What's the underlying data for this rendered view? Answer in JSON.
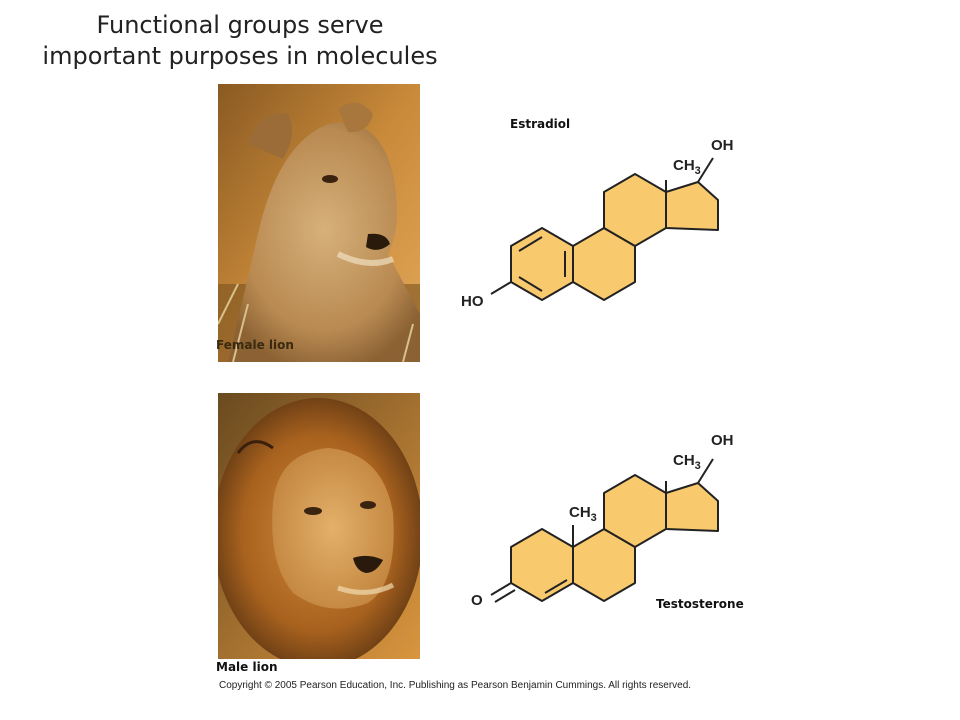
{
  "title": "Functional groups serve important purposes in molecules",
  "photos": {
    "female": {
      "label": "Female lion"
    },
    "male": {
      "label": "Male lion"
    }
  },
  "molecules": {
    "estradiol": {
      "name": "Estradiol",
      "groups": {
        "oh_top": "OH",
        "ho_left": "HO",
        "methyl": "CH",
        "methyl_sub": "3"
      }
    },
    "testosterone": {
      "name": "Testosterone",
      "groups": {
        "oh_top": "OH",
        "carbonyl": "O",
        "methyl_top": "CH",
        "methyl_top_sub": "3",
        "methyl_mid": "CH",
        "methyl_mid_sub": "3"
      }
    }
  },
  "ring_fill_color": "#f9c96e",
  "copyright": "Copyright © 2005 Pearson Education, Inc. Publishing as Pearson Benjamin Cummings. All rights reserved."
}
